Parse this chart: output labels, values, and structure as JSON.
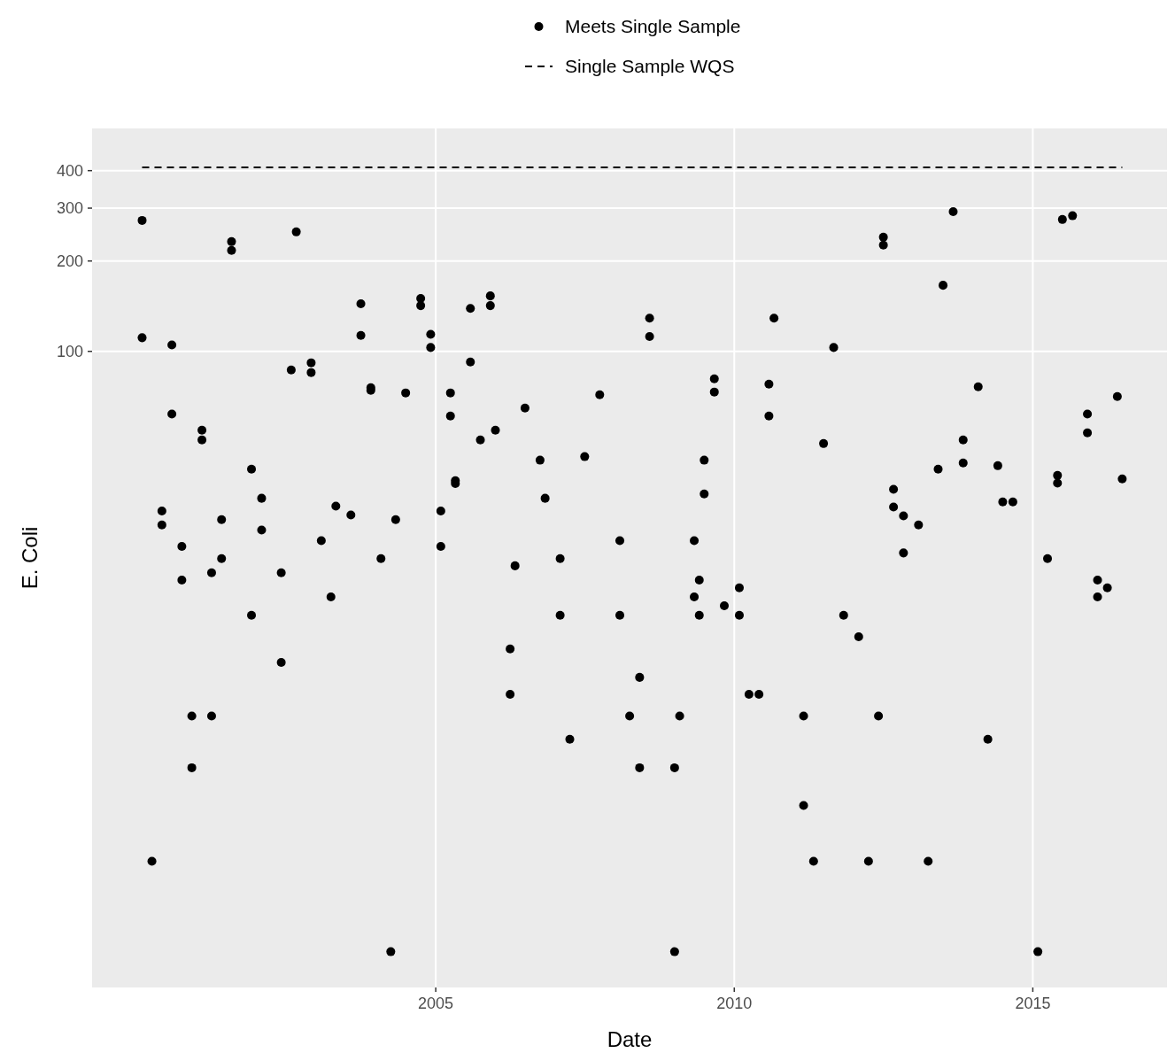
{
  "chart_data": {
    "type": "scatter",
    "xlabel": "Date",
    "ylabel": "E. Coli",
    "log": "y",
    "grid": true,
    "legend": "top",
    "xlim": [
      "1999-04",
      "2017-04"
    ],
    "xticks": [
      {
        "value": "2005",
        "label": "2005"
      },
      {
        "value": "2010",
        "label": "2010"
      },
      {
        "value": "2015",
        "label": "2015"
      }
    ],
    "ylim": [
      0.76,
      553
    ],
    "yticks": [
      100,
      200,
      300,
      400
    ],
    "series": [
      {
        "name": "Meets Single Sample",
        "marker": "circle",
        "color": "#000000",
        "x": [
          "2000-02",
          "2000-02",
          "2000-04",
          "2000-06",
          "2000-06",
          "2000-08",
          "2000-08",
          "2000-10",
          "2000-10",
          "2000-12",
          "2000-12",
          "2001-02",
          "2001-02",
          "2001-04",
          "2001-04",
          "2001-06",
          "2001-06",
          "2001-08",
          "2001-08",
          "2001-12",
          "2001-12",
          "2002-02",
          "2002-02",
          "2002-06",
          "2002-06",
          "2002-08",
          "2002-09",
          "2002-12",
          "2002-12",
          "2003-02",
          "2003-04",
          "2003-05",
          "2003-08",
          "2003-10",
          "2003-10",
          "2003-12",
          "2003-12",
          "2004-02",
          "2004-04",
          "2004-05",
          "2004-07",
          "2004-10",
          "2004-10",
          "2004-12",
          "2004-12",
          "2005-02",
          "2005-02",
          "2005-04",
          "2005-04",
          "2005-05",
          "2005-05",
          "2005-08",
          "2005-08",
          "2005-10",
          "2005-12",
          "2005-12",
          "2006-01",
          "2006-04",
          "2006-04",
          "2006-05",
          "2006-07",
          "2006-10",
          "2006-11",
          "2007-02",
          "2007-02",
          "2007-04",
          "2007-07",
          "2007-10",
          "2008-02",
          "2008-02",
          "2008-04",
          "2008-06",
          "2008-06",
          "2008-08",
          "2008-08",
          "2009-01",
          "2009-01",
          "2009-02",
          "2009-05",
          "2009-05",
          "2009-06",
          "2009-06",
          "2009-07",
          "2009-07",
          "2009-09",
          "2009-09",
          "2009-11",
          "2010-02",
          "2010-02",
          "2010-04",
          "2010-06",
          "2010-08",
          "2010-08",
          "2010-09",
          "2011-03",
          "2011-03",
          "2011-05",
          "2011-07",
          "2011-09",
          "2011-11",
          "2012-02",
          "2012-04",
          "2012-06",
          "2012-07",
          "2012-07",
          "2012-09",
          "2012-09",
          "2012-11",
          "2012-11",
          "2013-02",
          "2013-04",
          "2013-06",
          "2013-07",
          "2013-09",
          "2013-11",
          "2013-11",
          "2014-02",
          "2014-04",
          "2014-06",
          "2014-07",
          "2014-09",
          "2015-02",
          "2015-04",
          "2015-06",
          "2015-06",
          "2015-07",
          "2015-09",
          "2015-12",
          "2015-12",
          "2016-02",
          "2016-02",
          "2016-04",
          "2016-06",
          "2016-07"
        ],
        "values": [
          273,
          111,
          2,
          29.4,
          26.4,
          105,
          61.8,
          22.4,
          17.3,
          6.1,
          4.1,
          54.6,
          50.7,
          18.3,
          6.1,
          27.5,
          20.4,
          232,
          217,
          40.5,
          13.2,
          32.4,
          25.4,
          18.3,
          9.2,
          86.7,
          250,
          91.6,
          85,
          23.4,
          15.2,
          30.5,
          28.5,
          144,
          113,
          75.7,
          74.2,
          20.4,
          1,
          27.5,
          72.7,
          150,
          142,
          114,
          103,
          29.4,
          22.4,
          72.7,
          60.9,
          37.1,
          36.3,
          92.2,
          139,
          50.7,
          153,
          142,
          54.6,
          10.2,
          7.2,
          19.3,
          64.7,
          43.4,
          32.4,
          20.4,
          13.2,
          5.1,
          44.6,
          71.7,
          23.4,
          13.2,
          6.1,
          8.2,
          4.1,
          129,
          112,
          4.1,
          1,
          6.1,
          23.4,
          15.2,
          17.3,
          13.2,
          43.4,
          33.5,
          81,
          73.2,
          14.2,
          16.3,
          13.2,
          7.2,
          7.2,
          77.8,
          60.9,
          129,
          6.1,
          3.07,
          2,
          49.3,
          103,
          13.2,
          11.2,
          2,
          6.1,
          240,
          226,
          34.7,
          30.3,
          28.3,
          21.3,
          26.4,
          2,
          40.5,
          166,
          292,
          50.7,
          42.5,
          76.2,
          5.1,
          41.6,
          31.5,
          31.5,
          1,
          20.4,
          38.6,
          36.4,
          275,
          283,
          61.8,
          53.5,
          17.3,
          15.2,
          16.3,
          70.7,
          37.6
        ]
      },
      {
        "name": "Single Sample WQS",
        "type": "line",
        "line_style": "dashed",
        "color": "#000000",
        "x": [
          "2000-02",
          "2016-07"
        ],
        "values": [
          410,
          410
        ]
      }
    ]
  }
}
